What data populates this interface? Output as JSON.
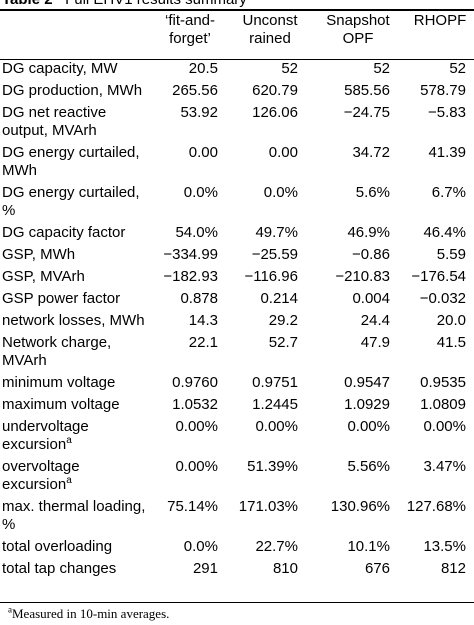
{
  "caption": {
    "label": "Table 2",
    "title": "Full EHV1 results summary"
  },
  "columns": [
    {
      "line1": "‘fit-and-",
      "line2": "forget’"
    },
    {
      "line1": "Unconst",
      "line2": "rained"
    },
    {
      "line1": "Snapshot",
      "line2": "OPF"
    },
    {
      "line1": "RHOPF",
      "line2": ""
    }
  ],
  "rows": [
    {
      "label": "DG capacity, MW",
      "sup": "",
      "h": 22,
      "values": [
        "20.5",
        "52",
        "52",
        "52"
      ]
    },
    {
      "label": "DG production, MWh",
      "sup": "",
      "h": 22,
      "values": [
        "265.56",
        "620.79",
        "585.56",
        "578.79"
      ]
    },
    {
      "label": "DG net reactive output, MVArh",
      "sup": "",
      "h": 40,
      "values": [
        "53.92",
        "126.06",
        "−24.75",
        "−5.83"
      ]
    },
    {
      "label": "DG energy curtailed, MWh",
      "sup": "",
      "h": 40,
      "values": [
        "0.00",
        "0.00",
        "34.72",
        "41.39"
      ]
    },
    {
      "label": "DG energy curtailed, %",
      "sup": "",
      "h": 40,
      "values": [
        "0.0%",
        "0.0%",
        "5.6%",
        "6.7%"
      ]
    },
    {
      "label": "DG capacity factor",
      "sup": "",
      "h": 22,
      "values": [
        "54.0%",
        "49.7%",
        "46.9%",
        "46.4%"
      ]
    },
    {
      "label": "GSP, MWh",
      "sup": "",
      "h": 22,
      "values": [
        "−334.99",
        "−25.59",
        "−0.86",
        "5.59"
      ]
    },
    {
      "label": "GSP, MVArh",
      "sup": "",
      "h": 22,
      "values": [
        "−182.93",
        "−116.96",
        "−210.83",
        "−176.54"
      ]
    },
    {
      "label": "GSP power factor",
      "sup": "",
      "h": 22,
      "values": [
        "0.878",
        "0.214",
        "0.004",
        "−0.032"
      ]
    },
    {
      "label": "network losses, MWh",
      "sup": "",
      "h": 22,
      "values": [
        "14.3",
        "29.2",
        "24.4",
        "20.0"
      ]
    },
    {
      "label": "Network charge, MVArh",
      "sup": "",
      "h": 40,
      "values": [
        "22.1",
        "52.7",
        "47.9",
        "41.5"
      ]
    },
    {
      "label": "minimum voltage",
      "sup": "",
      "h": 22,
      "values": [
        "0.9760",
        "0.9751",
        "0.9547",
        "0.9535"
      ]
    },
    {
      "label": "maximum voltage",
      "sup": "",
      "h": 22,
      "values": [
        "1.0532",
        "1.2445",
        "1.0929",
        "1.0809"
      ]
    },
    {
      "label": "undervoltage excursion",
      "sup": "a",
      "h": 40,
      "values": [
        "0.00%",
        "0.00%",
        "0.00%",
        "0.00%"
      ]
    },
    {
      "label": "overvoltage excursion",
      "sup": "a",
      "h": 40,
      "values": [
        "0.00%",
        "51.39%",
        "5.56%",
        "3.47%"
      ]
    },
    {
      "label": "max. thermal loading, %",
      "sup": "",
      "h": 40,
      "values": [
        "75.14%",
        "171.03%",
        "130.96%",
        "127.68%"
      ]
    },
    {
      "label": "total overloading",
      "sup": "",
      "h": 22,
      "values": [
        "0.0%",
        "22.7%",
        "10.1%",
        "13.5%"
      ]
    },
    {
      "label": "total tap changes",
      "sup": "",
      "h": 22,
      "values": [
        "291",
        "810",
        "676",
        "812"
      ]
    }
  ],
  "footnote": {
    "sup": "a",
    "text": "Measured in 10-min averages."
  }
}
